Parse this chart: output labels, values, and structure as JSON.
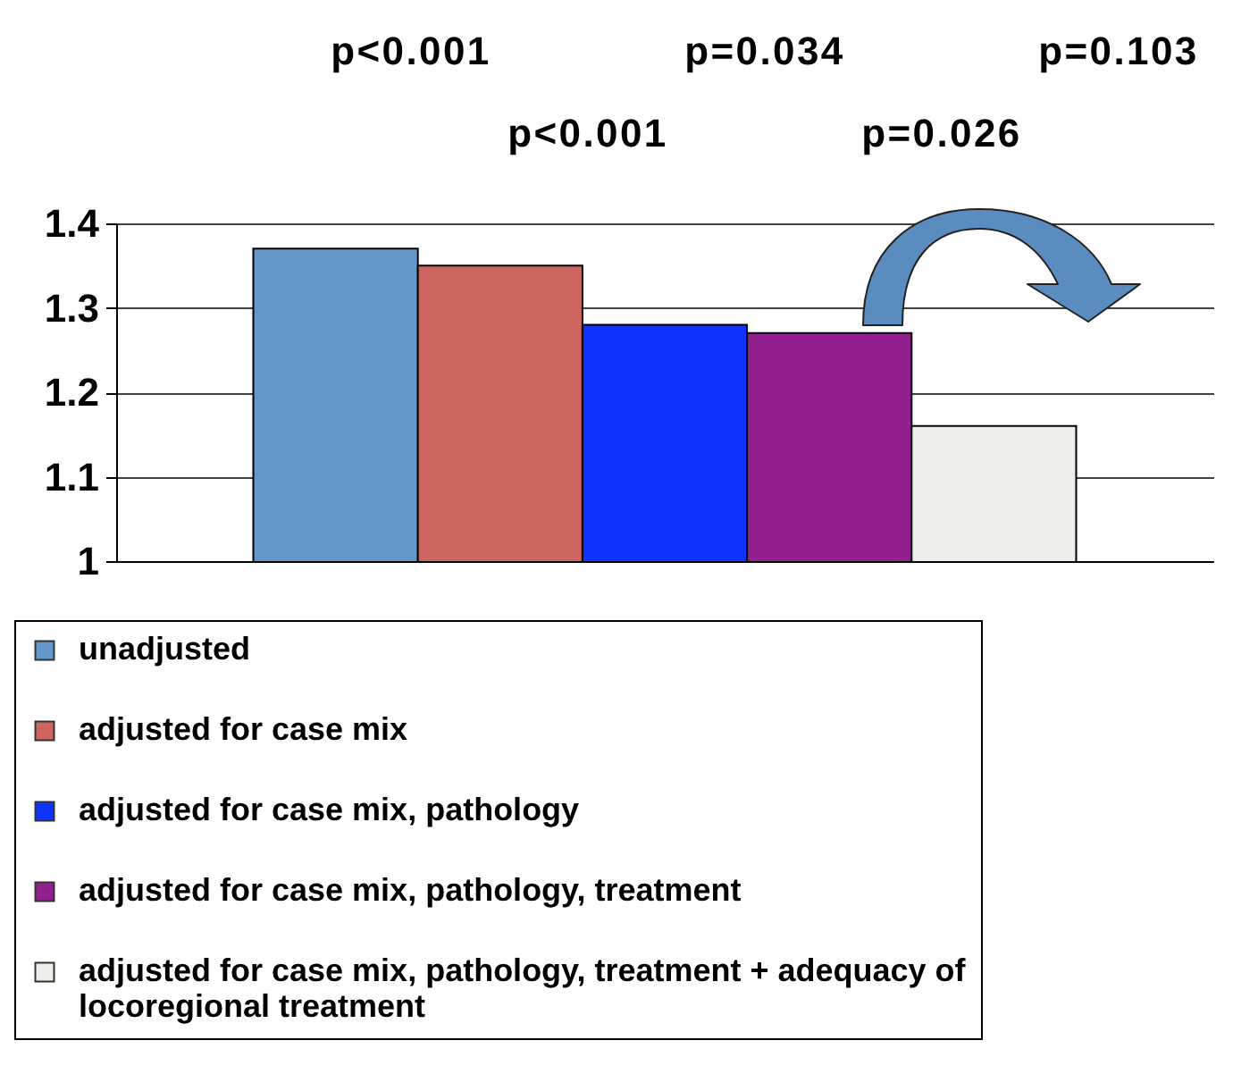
{
  "chart_data": {
    "type": "bar",
    "categories": [
      null
    ],
    "series": [
      {
        "name": "unadjusted",
        "color": "#6497cb",
        "values": [
          1.37
        ]
      },
      {
        "name": "adjusted for case mix",
        "color": "#cd665f",
        "values": [
          1.35
        ]
      },
      {
        "name": "adjusted for case mix, pathology",
        "color": "#1133ff",
        "values": [
          1.28
        ]
      },
      {
        "name": "adjusted for case mix, pathology, treatment",
        "color": "#93208f",
        "values": [
          1.27
        ]
      },
      {
        "name": "adjusted for case mix, pathology, treatment + adequacy of locoregional treatment",
        "color": "#eeeee8",
        "values": [
          1.16
        ]
      }
    ],
    "ylim": [
      1,
      1.4
    ],
    "yticks": [
      1,
      1.1,
      1.2,
      1.3,
      1.4
    ],
    "grid": "y",
    "legend": "bottom",
    "annotations": [
      "p<0.001",
      "p<0.001",
      "p=0.034",
      "p=0.026",
      "p=0.103"
    ]
  }
}
